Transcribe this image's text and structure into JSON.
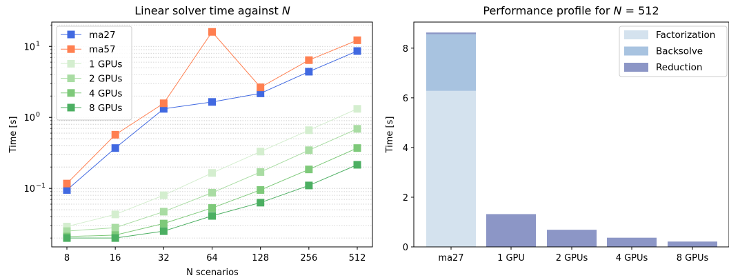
{
  "chart_data": [
    {
      "type": "line",
      "title": "Linear solver time against N",
      "title_prefix": "Linear solver time against ",
      "title_var": "N",
      "xlabel": "N scenarios",
      "ylabel": "Time [s]",
      "yscale": "log",
      "ylim": [
        0.015,
        22
      ],
      "grid": "minor-y dotted",
      "legend": "top-left",
      "categories": [
        "8",
        "16",
        "32",
        "64",
        "128",
        "256",
        "512"
      ],
      "yticks": [
        {
          "value": 0.1,
          "base": "10",
          "exp": "−1"
        },
        {
          "value": 1,
          "base": "10",
          "exp": "0"
        },
        {
          "value": 10,
          "base": "10",
          "exp": "1"
        }
      ],
      "series": [
        {
          "name": "ma27",
          "color": "#4169e1",
          "values": [
            0.095,
            0.37,
            1.32,
            1.65,
            2.18,
            4.4,
            8.6
          ]
        },
        {
          "name": "ma57",
          "color": "#ff7f50",
          "values": [
            0.117,
            0.57,
            1.58,
            16.0,
            2.65,
            6.4,
            12.2
          ]
        },
        {
          "name": "1 GPUs",
          "color": "#d4eecf",
          "values": [
            0.029,
            0.043,
            0.08,
            0.165,
            0.33,
            0.66,
            1.32
          ]
        },
        {
          "name": "2 GPUs",
          "color": "#a9dca3",
          "values": [
            0.025,
            0.028,
            0.047,
            0.087,
            0.17,
            0.345,
            0.69
          ]
        },
        {
          "name": "4 GPUs",
          "color": "#7ec97a",
          "values": [
            0.021,
            0.022,
            0.032,
            0.053,
            0.095,
            0.185,
            0.37
          ]
        },
        {
          "name": "8 GPUs",
          "color": "#4caf62",
          "values": [
            0.02,
            0.02,
            0.025,
            0.041,
            0.063,
            0.11,
            0.215
          ]
        }
      ]
    },
    {
      "type": "bar",
      "stacked": true,
      "title": "Performance profile for N = 512",
      "title_prefix": "Performance profile for ",
      "title_var": "N",
      "title_suffix": " = 512",
      "xlabel": "",
      "ylabel": "Time [s]",
      "ylim": [
        0,
        9.05
      ],
      "yticks": [
        0,
        2,
        4,
        6,
        8
      ],
      "legend": "top-right",
      "categories": [
        "ma27",
        "1 GPU",
        "2 GPUs",
        "4 GPUs",
        "8 GPUs"
      ],
      "series": [
        {
          "name": "Factorization",
          "color": "#d4e2ee",
          "values": [
            6.28,
            0,
            0,
            0,
            0
          ]
        },
        {
          "name": "Backsolve",
          "color": "#a8c3e0",
          "values": [
            2.28,
            0,
            0,
            0,
            0
          ]
        },
        {
          "name": "Reduction",
          "color": "#8c96c6",
          "values": [
            0.07,
            1.32,
            0.69,
            0.37,
            0.215
          ]
        }
      ]
    }
  ]
}
